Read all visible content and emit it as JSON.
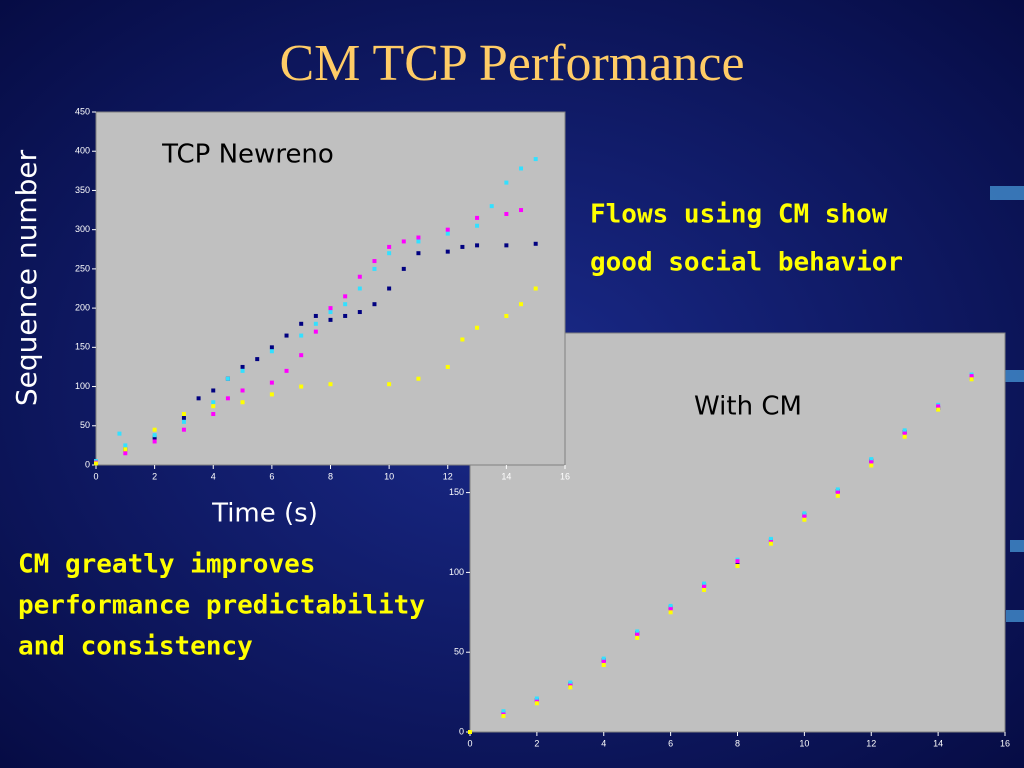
{
  "slide": {
    "title": "CM TCP Performance",
    "note_top": [
      "Flows using CM show",
      "good social behavior"
    ],
    "note_bottom": [
      "CM greatly improves",
      "performance predictability",
      "and consistency"
    ]
  },
  "chart_data": [
    {
      "type": "scatter",
      "title": "TCP Newreno",
      "x_label": "Time (s)",
      "y_label": "Sequence number",
      "xlim": [
        0,
        16
      ],
      "xticks": [
        0,
        2,
        4,
        6,
        8,
        10,
        12,
        14,
        16
      ],
      "ylim": [
        0,
        450
      ],
      "yticks": [
        0,
        50,
        100,
        150,
        200,
        250,
        300,
        350,
        400,
        450
      ],
      "series": [
        {
          "color": "#000080",
          "x": [
            0,
            1,
            2,
            3,
            3.5,
            4,
            4.5,
            5,
            5.5,
            6,
            6.5,
            7,
            7.5,
            8,
            8.5,
            9,
            9.5,
            10,
            10.5,
            11,
            12,
            12.5,
            13,
            14,
            15
          ],
          "values": [
            2,
            20,
            35,
            60,
            85,
            95,
            110,
            125,
            135,
            150,
            165,
            180,
            190,
            185,
            190,
            195,
            205,
            225,
            250,
            270,
            272,
            278,
            280,
            280,
            282
          ]
        },
        {
          "color": "#33e0ff",
          "x": [
            0,
            0.8,
            1,
            2,
            3,
            4,
            4.5,
            5,
            6,
            7,
            7.5,
            8,
            8.5,
            9,
            9.5,
            10,
            11,
            12,
            13,
            13.5,
            14,
            14.5,
            15
          ],
          "values": [
            5,
            40,
            25,
            38,
            55,
            80,
            110,
            120,
            145,
            165,
            180,
            195,
            205,
            225,
            250,
            270,
            285,
            295,
            305,
            330,
            360,
            378,
            390
          ]
        },
        {
          "color": "#ff00ff",
          "x": [
            0,
            1,
            2,
            3,
            4,
            4.5,
            5,
            6,
            6.5,
            7,
            7.5,
            8,
            8.5,
            9,
            9.5,
            10,
            10.5,
            11,
            12,
            13,
            14,
            14.5
          ],
          "values": [
            3,
            15,
            30,
            45,
            65,
            85,
            95,
            105,
            120,
            140,
            170,
            200,
            215,
            240,
            260,
            278,
            285,
            290,
            300,
            315,
            320,
            325
          ]
        },
        {
          "color": "#ffff00",
          "x": [
            0,
            1,
            2,
            3,
            4,
            5,
            6,
            7,
            8,
            10,
            11,
            12,
            12.5,
            13,
            14,
            14.5,
            15
          ],
          "values": [
            2,
            20,
            45,
            65,
            75,
            80,
            90,
            100,
            103,
            103,
            110,
            125,
            160,
            175,
            190,
            205,
            225
          ]
        }
      ]
    },
    {
      "type": "scatter",
      "title": "With CM",
      "xlim": [
        0,
        16
      ],
      "xticks": [
        0,
        2,
        4,
        6,
        8,
        10,
        12,
        14,
        16
      ],
      "ylim": [
        0,
        250
      ],
      "yticks": [
        0,
        50,
        100,
        150
      ],
      "series": [
        {
          "color": "#000080",
          "x": [
            0,
            1,
            2,
            3,
            4,
            5,
            6,
            7,
            8,
            9,
            10,
            11,
            12,
            13,
            14,
            15
          ],
          "values": [
            0,
            12,
            20,
            30,
            45,
            62,
            78,
            92,
            106,
            120,
            136,
            151,
            170,
            188,
            203,
            222
          ]
        },
        {
          "color": "#33e0ff",
          "x": [
            0,
            1,
            2,
            3,
            4,
            5,
            6,
            7,
            8,
            9,
            10,
            11,
            12,
            13,
            14,
            15
          ],
          "values": [
            0,
            13,
            21,
            31,
            46,
            63,
            79,
            93,
            108,
            121,
            137,
            152,
            171,
            189,
            205,
            224
          ]
        },
        {
          "color": "#ff00ff",
          "x": [
            0,
            1,
            2,
            3,
            4,
            5,
            6,
            7,
            8,
            9,
            10,
            11,
            12,
            13,
            14,
            15
          ],
          "values": [
            0,
            11,
            19,
            29,
            44,
            61,
            77,
            91,
            107,
            119,
            135,
            150,
            169,
            187,
            204,
            223
          ]
        },
        {
          "color": "#ffff00",
          "x": [
            0,
            1,
            2,
            3,
            4,
            5,
            6,
            7,
            8,
            9,
            10,
            11,
            12,
            13,
            14,
            15
          ],
          "values": [
            0,
            10,
            18,
            28,
            42,
            59,
            75,
            89,
            104,
            118,
            133,
            148,
            167,
            185,
            202,
            221
          ]
        }
      ]
    }
  ]
}
